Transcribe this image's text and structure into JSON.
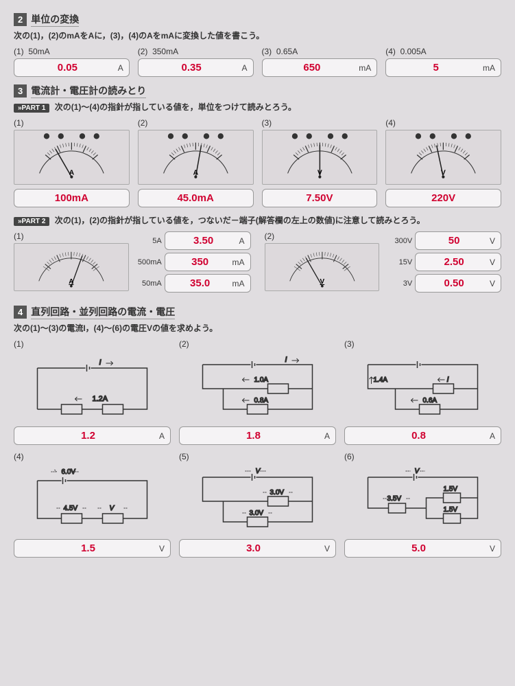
{
  "s2": {
    "num": "2",
    "title": "単位の変換",
    "instr": "次の(1)，(2)のmAをAに，(3)，(4)のAをmAに変換した値を書こう。",
    "items": [
      {
        "n": "(1)",
        "q": "50mA",
        "val": "0.05",
        "unit": "A"
      },
      {
        "n": "(2)",
        "q": "350mA",
        "val": "0.35",
        "unit": "A"
      },
      {
        "n": "(3)",
        "q": "0.65A",
        "val": "650",
        "unit": "mA"
      },
      {
        "n": "(4)",
        "q": "0.005A",
        "val": "5",
        "unit": "mA"
      }
    ]
  },
  "s3": {
    "num": "3",
    "title": "電流計・電圧計の読みとり",
    "part1_instr": "次の(1)～(4)の指針が指している値を，単位をつけて読みとろう。",
    "p1": [
      {
        "n": "(1)",
        "val": "100mA",
        "needle": -30,
        "letter": "A"
      },
      {
        "n": "(2)",
        "val": "45.0mA",
        "needle": 10,
        "letter": "A"
      },
      {
        "n": "(3)",
        "val": "7.50V",
        "needle": 0,
        "letter": "V"
      },
      {
        "n": "(4)",
        "val": "220V",
        "needle": -12,
        "letter": "V"
      }
    ],
    "part2_instr": "次の(1)，(2)の指針が指している値を，つないだ－端子(解答欄の左上の数値)に注意して読みとろう。",
    "p2": [
      {
        "n": "(1)",
        "letter": "A",
        "needle": 20,
        "scales": [
          {
            "lbl": "5A",
            "val": "3.50",
            "unit": "A"
          },
          {
            "lbl": "500mA",
            "val": "350",
            "unit": "mA"
          },
          {
            "lbl": "50mA",
            "val": "35.0",
            "unit": "mA"
          }
        ]
      },
      {
        "n": "(2)",
        "letter": "V",
        "needle": -30,
        "scales": [
          {
            "lbl": "300V",
            "val": "50",
            "unit": "V"
          },
          {
            "lbl": "15V",
            "val": "2.50",
            "unit": "V"
          },
          {
            "lbl": "3V",
            "val": "0.50",
            "unit": "V"
          }
        ]
      }
    ]
  },
  "s4": {
    "num": "4",
    "title": "直列回路・並列回路の電流・電圧",
    "instr": "次の(1)～(3)の電流I，(4)～(6)の電圧Vの値を求めよう。",
    "items": [
      {
        "n": "(1)",
        "val": "1.2",
        "unit": "A",
        "svg": "c1"
      },
      {
        "n": "(2)",
        "val": "1.8",
        "unit": "A",
        "svg": "c2"
      },
      {
        "n": "(3)",
        "val": "0.8",
        "unit": "A",
        "svg": "c3"
      },
      {
        "n": "(4)",
        "val": "1.5",
        "unit": "V",
        "svg": "c4"
      },
      {
        "n": "(5)",
        "val": "3.0",
        "unit": "V",
        "svg": "c5"
      },
      {
        "n": "(6)",
        "val": "5.0",
        "unit": "V",
        "svg": "c6"
      }
    ]
  },
  "colors": {
    "accent": "#d00030",
    "box_border": "#999"
  }
}
